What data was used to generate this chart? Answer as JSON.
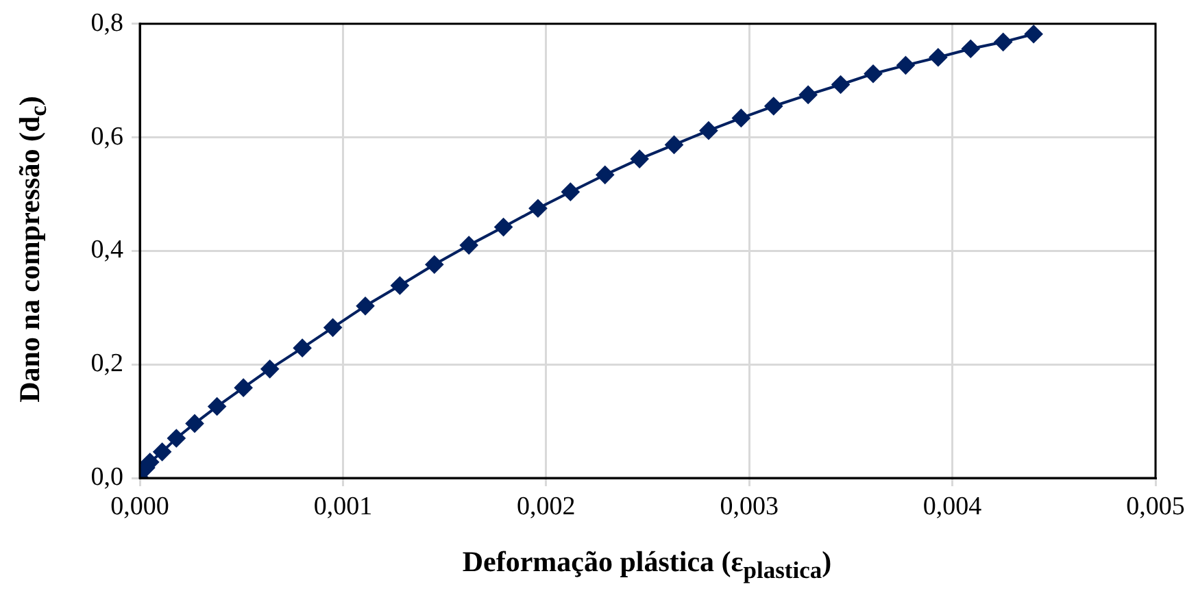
{
  "chart_data": {
    "type": "line",
    "xlabel": "Deformação plástica (ε$_{plastica}$)",
    "ylabel": "Dano na compressão (d$_{c}$)",
    "series": [
      {
        "color": "#002060",
        "x": [
          0,
          3e-05,
          5e-05,
          0.00011,
          0.00018,
          0.00027,
          0.00038,
          0.00051,
          0.00064,
          0.0008,
          0.00095,
          0.00111,
          0.00128,
          0.00145,
          0.00162,
          0.00179,
          0.00196,
          0.00212,
          0.00229,
          0.00246,
          0.00263,
          0.0028,
          0.00296,
          0.00312,
          0.00329,
          0.00345,
          0.00361,
          0.00377,
          0.00393,
          0.00409,
          0.00425,
          0.0044
        ],
        "values": [
          0,
          0.018,
          0.028,
          0.046,
          0.07,
          0.096,
          0.126,
          0.159,
          0.192,
          0.229,
          0.265,
          0.303,
          0.339,
          0.376,
          0.41,
          0.442,
          0.475,
          0.504,
          0.534,
          0.562,
          0.587,
          0.612,
          0.634,
          0.655,
          0.675,
          0.693,
          0.712,
          0.727,
          0.741,
          0.756,
          0.768,
          0.782
        ]
      }
    ],
    "xlim": [
      0,
      0.005
    ],
    "xticks": [
      {
        "value": 0,
        "label": "0,000"
      },
      {
        "value": 0.001,
        "label": "0,001"
      },
      {
        "value": 0.002,
        "label": "0,002"
      },
      {
        "value": 0.003,
        "label": "0,003"
      },
      {
        "value": 0.004,
        "label": "0,004"
      },
      {
        "value": 0.005,
        "label": "0,005"
      }
    ],
    "ylim": [
      0,
      0.8
    ],
    "yticks": [
      {
        "value": 0,
        "label": "0,0"
      },
      {
        "value": 0.2,
        "label": "0,2"
      },
      {
        "value": 0.4,
        "label": "0,4"
      },
      {
        "value": 0.6,
        "label": "0,6"
      },
      {
        "value": 0.8,
        "label": "0,8"
      }
    ],
    "grid": true,
    "legend": false,
    "marker": "diamond",
    "line_style": "solid"
  }
}
